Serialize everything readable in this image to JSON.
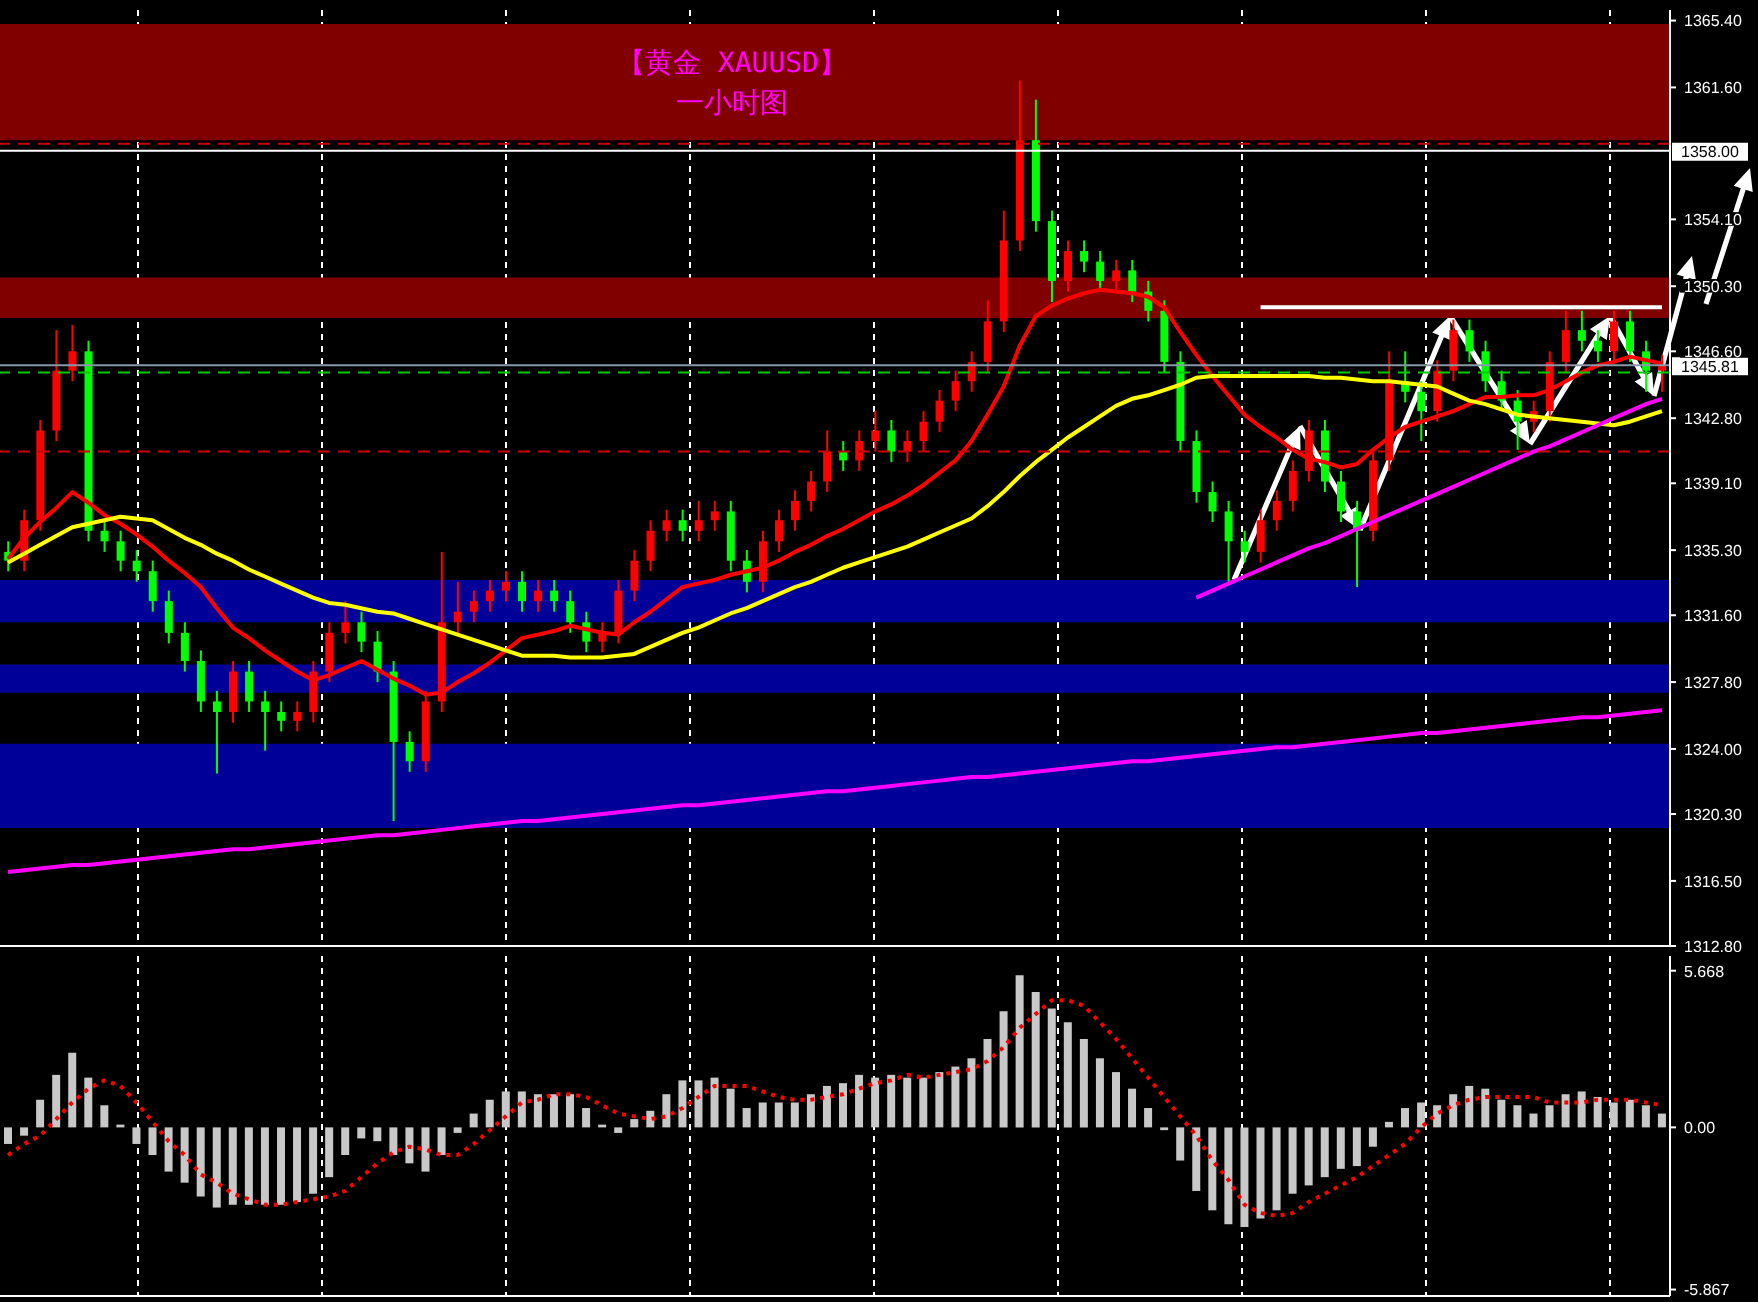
{
  "chart_data": [
    {
      "type": "candlestick",
      "title": "【黄金 XAUUSD】",
      "subtitle": "一小时图",
      "categories": [
        null,
        null,
        null,
        null,
        null,
        null,
        null,
        null,
        null,
        null,
        null,
        null,
        null,
        null,
        null,
        null,
        null,
        null,
        null,
        null,
        null,
        null,
        null,
        null,
        null,
        null,
        null,
        null,
        null,
        null,
        null,
        null,
        null,
        null,
        null,
        null,
        null,
        null,
        null,
        null,
        null,
        null,
        null,
        null,
        null,
        null,
        null,
        null,
        null,
        null,
        null,
        null,
        null,
        null,
        null,
        null,
        null,
        null,
        null,
        null,
        null,
        null,
        null,
        null,
        null,
        null,
        null,
        null,
        null,
        null,
        null,
        null,
        null,
        null,
        null,
        null,
        null,
        null,
        null,
        null,
        null,
        null,
        null,
        null,
        null,
        null,
        null,
        null,
        null,
        null,
        null,
        null,
        null,
        null,
        null,
        null,
        null,
        null,
        null,
        null,
        null,
        null,
        null,
        null
      ],
      "ohlc": [
        [
          1335.2,
          1335.8,
          1334.1,
          1334.7
        ],
        [
          1334.7,
          1337.6,
          1334.1,
          1337.0
        ],
        [
          1337.0,
          1342.7,
          1336.4,
          1342.1
        ],
        [
          1342.1,
          1347.8,
          1341.5,
          1345.5
        ],
        [
          1345.5,
          1348.1,
          1344.9,
          1346.6
        ],
        [
          1346.6,
          1347.2,
          1335.8,
          1336.4
        ],
        [
          1336.4,
          1337.0,
          1335.2,
          1335.8
        ],
        [
          1335.8,
          1336.4,
          1334.1,
          1334.7
        ],
        [
          1334.7,
          1335.3,
          1333.5,
          1334.1
        ],
        [
          1334.1,
          1334.7,
          1331.8,
          1332.4
        ],
        [
          1332.4,
          1333.0,
          1330.0,
          1330.6
        ],
        [
          1330.6,
          1331.2,
          1328.4,
          1329.0
        ],
        [
          1329.0,
          1329.6,
          1326.1,
          1326.7
        ],
        [
          1326.7,
          1327.3,
          1322.6,
          1326.1
        ],
        [
          1326.1,
          1329.0,
          1325.5,
          1328.4
        ],
        [
          1328.4,
          1329.0,
          1326.1,
          1326.7
        ],
        [
          1326.7,
          1327.3,
          1323.9,
          1326.1
        ],
        [
          1326.1,
          1326.7,
          1325.0,
          1325.6
        ],
        [
          1325.6,
          1326.7,
          1325.0,
          1326.1
        ],
        [
          1326.1,
          1329.0,
          1325.5,
          1328.4
        ],
        [
          1328.4,
          1331.2,
          1327.8,
          1330.6
        ],
        [
          1330.6,
          1332.4,
          1330.0,
          1331.2
        ],
        [
          1331.2,
          1331.8,
          1329.5,
          1330.1
        ],
        [
          1330.1,
          1330.7,
          1327.8,
          1328.4
        ],
        [
          1328.4,
          1329.0,
          1319.9,
          1324.4
        ],
        [
          1324.4,
          1325.0,
          1322.7,
          1323.3
        ],
        [
          1323.3,
          1327.3,
          1322.7,
          1326.7
        ],
        [
          1326.7,
          1335.2,
          1326.1,
          1331.2
        ],
        [
          1331.2,
          1333.5,
          1330.6,
          1331.8
        ],
        [
          1331.8,
          1333.0,
          1331.2,
          1332.4
        ],
        [
          1332.4,
          1333.6,
          1331.8,
          1333.0
        ],
        [
          1333.0,
          1334.1,
          1332.4,
          1333.5
        ],
        [
          1333.5,
          1334.1,
          1331.8,
          1332.4
        ],
        [
          1332.4,
          1333.6,
          1331.8,
          1333.0
        ],
        [
          1333.0,
          1333.6,
          1331.8,
          1332.4
        ],
        [
          1332.4,
          1333.0,
          1330.6,
          1331.2
        ],
        [
          1331.2,
          1331.8,
          1329.5,
          1330.1
        ],
        [
          1330.1,
          1331.2,
          1329.5,
          1330.6
        ],
        [
          1330.6,
          1333.6,
          1330.0,
          1333.0
        ],
        [
          1333.0,
          1335.3,
          1332.4,
          1334.7
        ],
        [
          1334.7,
          1337.0,
          1334.1,
          1336.4
        ],
        [
          1336.4,
          1337.6,
          1335.8,
          1337.0
        ],
        [
          1337.0,
          1337.6,
          1335.8,
          1336.4
        ],
        [
          1336.4,
          1338.1,
          1335.8,
          1337.0
        ],
        [
          1337.0,
          1338.1,
          1336.4,
          1337.5
        ],
        [
          1337.5,
          1338.1,
          1334.1,
          1334.7
        ],
        [
          1334.7,
          1335.3,
          1332.9,
          1333.5
        ],
        [
          1333.5,
          1336.4,
          1332.9,
          1335.8
        ],
        [
          1335.8,
          1337.6,
          1335.2,
          1337.0
        ],
        [
          1337.0,
          1338.7,
          1336.4,
          1338.1
        ],
        [
          1338.1,
          1339.8,
          1337.5,
          1339.2
        ],
        [
          1339.2,
          1342.1,
          1338.6,
          1340.9
        ],
        [
          1340.9,
          1341.5,
          1339.8,
          1340.4
        ],
        [
          1340.4,
          1342.1,
          1339.8,
          1341.5
        ],
        [
          1341.5,
          1343.2,
          1340.9,
          1342.1
        ],
        [
          1342.1,
          1342.7,
          1340.3,
          1340.9
        ],
        [
          1340.9,
          1342.1,
          1340.3,
          1341.5
        ],
        [
          1341.5,
          1343.2,
          1340.9,
          1342.6
        ],
        [
          1342.6,
          1344.4,
          1342.0,
          1343.8
        ],
        [
          1343.8,
          1345.5,
          1343.2,
          1344.9
        ],
        [
          1344.9,
          1346.6,
          1344.3,
          1346.0
        ],
        [
          1346.0,
          1349.5,
          1345.4,
          1348.3
        ],
        [
          1348.3,
          1354.6,
          1347.7,
          1352.9
        ],
        [
          1352.9,
          1362.0,
          1352.3,
          1358.6
        ],
        [
          1358.6,
          1360.9,
          1353.4,
          1354.0
        ],
        [
          1354.0,
          1354.6,
          1349.4,
          1350.6
        ],
        [
          1350.6,
          1352.9,
          1350.0,
          1352.3
        ],
        [
          1352.3,
          1352.9,
          1351.1,
          1351.7
        ],
        [
          1351.7,
          1352.3,
          1350.0,
          1350.6
        ],
        [
          1350.6,
          1351.8,
          1350.0,
          1351.2
        ],
        [
          1351.2,
          1351.8,
          1349.4,
          1350.0
        ],
        [
          1350.0,
          1350.6,
          1348.3,
          1348.9
        ],
        [
          1348.9,
          1349.5,
          1345.4,
          1346.0
        ],
        [
          1346.0,
          1346.6,
          1340.9,
          1341.5
        ],
        [
          1341.5,
          1342.1,
          1338.0,
          1338.6
        ],
        [
          1338.6,
          1339.2,
          1336.9,
          1337.5
        ],
        [
          1337.5,
          1338.1,
          1333.5,
          1335.8
        ],
        [
          1335.8,
          1336.4,
          1334.6,
          1335.2
        ],
        [
          1335.2,
          1337.6,
          1334.6,
          1337.0
        ],
        [
          1337.0,
          1338.7,
          1336.4,
          1338.1
        ],
        [
          1338.1,
          1340.4,
          1337.5,
          1339.8
        ],
        [
          1339.8,
          1342.7,
          1339.2,
          1342.1
        ],
        [
          1342.1,
          1342.7,
          1338.6,
          1339.2
        ],
        [
          1339.2,
          1339.8,
          1336.9,
          1337.5
        ],
        [
          1337.5,
          1338.1,
          1333.2,
          1336.4
        ],
        [
          1336.4,
          1341.0,
          1335.8,
          1340.4
        ],
        [
          1340.4,
          1346.6,
          1339.8,
          1344.9
        ],
        [
          1344.9,
          1346.6,
          1343.7,
          1344.3
        ],
        [
          1344.3,
          1344.9,
          1341.5,
          1343.2
        ],
        [
          1343.2,
          1346.1,
          1342.6,
          1345.5
        ],
        [
          1345.5,
          1348.4,
          1344.9,
          1347.8
        ],
        [
          1347.8,
          1348.4,
          1346.0,
          1346.6
        ],
        [
          1346.6,
          1347.2,
          1344.3,
          1344.9
        ],
        [
          1344.9,
          1345.5,
          1343.2,
          1343.8
        ],
        [
          1343.8,
          1344.4,
          1341.0,
          1342.6
        ],
        [
          1342.6,
          1343.8,
          1342.0,
          1343.2
        ],
        [
          1343.2,
          1346.6,
          1342.6,
          1346.0
        ],
        [
          1346.0,
          1348.9,
          1345.4,
          1347.8
        ],
        [
          1347.8,
          1348.9,
          1346.6,
          1347.2
        ],
        [
          1347.2,
          1347.8,
          1346.0,
          1346.6
        ],
        [
          1346.6,
          1348.9,
          1346.0,
          1348.3
        ],
        [
          1348.3,
          1348.9,
          1346.0,
          1346.6
        ],
        [
          1346.6,
          1347.2,
          1344.3,
          1345.5
        ],
        [
          1345.5,
          1346.4,
          1344.3,
          1345.81
        ]
      ],
      "colors": [
        "#00ff00",
        "#ff0000",
        "#ff0000",
        "#ff0000",
        "#ff0000",
        "#00ff00",
        "#00ff00",
        "#00ff00",
        "#00ff00",
        "#00ff00",
        "#00ff00",
        "#00ff00",
        "#00ff00",
        "#00ff00",
        "#ff0000",
        "#00ff00",
        "#00ff00",
        "#00ff00",
        "#ff0000",
        "#ff0000",
        "#ff0000",
        "#ff0000",
        "#00ff00",
        "#00ff00",
        "#00ff00",
        "#00ff00",
        "#ff0000",
        "#ff0000",
        "#ff0000",
        "#ff0000",
        "#ff0000",
        "#ff0000",
        "#00ff00",
        "#ff0000",
        "#00ff00",
        "#00ff00",
        "#00ff00",
        "#ff0000",
        "#ff0000",
        "#ff0000",
        "#ff0000",
        "#ff0000",
        "#00ff00",
        "#ff0000",
        "#ff0000",
        "#00ff00",
        "#00ff00",
        "#ff0000",
        "#ff0000",
        "#ff0000",
        "#ff0000",
        "#ff0000",
        "#00ff00",
        "#ff0000",
        "#ff0000",
        "#00ff00",
        "#ff0000",
        "#ff0000",
        "#ff0000",
        "#ff0000",
        "#ff0000",
        "#ff0000",
        "#ff0000",
        "#ff0000",
        "#00ff00",
        "#00ff00",
        "#ff0000",
        "#00ff00",
        "#00ff00",
        "#ff0000",
        "#00ff00",
        "#00ff00",
        "#00ff00",
        "#00ff00",
        "#00ff00",
        "#00ff00",
        "#00ff00",
        "#00ff00",
        "#ff0000",
        "#ff0000",
        "#ff0000",
        "#ff0000",
        "#00ff00",
        "#00ff00",
        "#00ff00",
        "#ff0000",
        "#ff0000",
        "#00ff00",
        "#00ff00",
        "#ff0000",
        "#ff0000",
        "#00ff00",
        "#00ff00",
        "#00ff00",
        "#00ff00",
        "#ff0000",
        "#ff0000",
        "#ff0000",
        "#00ff00",
        "#00ff00",
        "#ff0000",
        "#00ff00",
        "#00ff00",
        "#ff0000"
      ],
      "series": [
        {
          "type": "line",
          "color": "#ff0000",
          "values": [
            1334.8,
            1336.0,
            1336.9,
            1337.7,
            1338.6,
            1338.0,
            1337.3,
            1336.8,
            1336.2,
            1335.5,
            1334.7,
            1334.0,
            1333.2,
            1332.0,
            1330.9,
            1330.3,
            1329.6,
            1329.0,
            1328.4,
            1327.9,
            1328.2,
            1328.6,
            1329.0,
            1328.5,
            1328.0,
            1327.6,
            1327.1,
            1327.2,
            1327.8,
            1328.3,
            1328.9,
            1329.6,
            1330.3,
            1330.5,
            1330.7,
            1331.0,
            1330.8,
            1330.6,
            1330.5,
            1331.2,
            1331.8,
            1332.5,
            1333.2,
            1333.4,
            1333.6,
            1333.9,
            1334.1,
            1334.3,
            1334.7,
            1335.2,
            1335.6,
            1336.1,
            1336.5,
            1337.0,
            1337.5,
            1337.9,
            1338.4,
            1339.0,
            1339.7,
            1340.4,
            1341.5,
            1343.0,
            1344.6,
            1346.9,
            1348.6,
            1349.2,
            1349.6,
            1349.9,
            1350.1,
            1350.0,
            1349.9,
            1349.7,
            1349.1,
            1347.7,
            1346.4,
            1345.2,
            1344.1,
            1343.0,
            1342.3,
            1341.7,
            1341.0,
            1340.5,
            1340.3,
            1340.0,
            1340.2,
            1341.0,
            1341.7,
            1342.3,
            1342.6,
            1342.9,
            1343.2,
            1343.6,
            1344.0,
            1344.0,
            1344.1,
            1344.1,
            1344.4,
            1344.9,
            1345.4,
            1345.8,
            1346.0,
            1346.3,
            1346.1,
            1345.9
          ]
        },
        {
          "type": "line",
          "color": "#ffff00",
          "values": [
            1334.6,
            1335.1,
            1335.6,
            1336.1,
            1336.6,
            1336.8,
            1337.0,
            1337.2,
            1337.1,
            1337.0,
            1336.5,
            1336.0,
            1335.6,
            1335.1,
            1334.7,
            1334.2,
            1333.8,
            1333.4,
            1333.0,
            1332.6,
            1332.3,
            1332.2,
            1332.0,
            1331.8,
            1331.7,
            1331.4,
            1331.1,
            1330.8,
            1330.5,
            1330.2,
            1329.9,
            1329.6,
            1329.3,
            1329.3,
            1329.3,
            1329.2,
            1329.2,
            1329.2,
            1329.3,
            1329.4,
            1329.8,
            1330.2,
            1330.6,
            1330.9,
            1331.3,
            1331.7,
            1332.0,
            1332.4,
            1332.8,
            1333.2,
            1333.5,
            1333.9,
            1334.3,
            1334.6,
            1334.9,
            1335.2,
            1335.5,
            1335.9,
            1336.3,
            1336.7,
            1337.1,
            1337.8,
            1338.6,
            1339.5,
            1340.3,
            1341.0,
            1341.7,
            1342.3,
            1342.9,
            1343.5,
            1343.9,
            1344.1,
            1344.4,
            1344.7,
            1345.1,
            1345.2,
            1345.2,
            1345.2,
            1345.2,
            1345.2,
            1345.2,
            1345.2,
            1345.1,
            1345.1,
            1345.0,
            1344.9,
            1344.9,
            1344.8,
            1344.7,
            1344.6,
            1344.2,
            1343.8,
            1343.6,
            1343.3,
            1343.0,
            1342.9,
            1342.8,
            1342.7,
            1342.6,
            1342.5,
            1342.4,
            1342.6,
            1342.9,
            1343.2
          ]
        },
        {
          "type": "line",
          "color": "#ff00ff",
          "values": [
            1317.0,
            1317.1,
            1317.2,
            1317.3,
            1317.4,
            1317.4,
            1317.5,
            1317.6,
            1317.7,
            1317.8,
            1317.9,
            1318.0,
            1318.1,
            1318.2,
            1318.3,
            1318.3,
            1318.4,
            1318.5,
            1318.6,
            1318.7,
            1318.8,
            1318.9,
            1319.0,
            1319.1,
            1319.1,
            1319.2,
            1319.3,
            1319.4,
            1319.5,
            1319.6,
            1319.7,
            1319.8,
            1319.9,
            1319.9,
            1320.0,
            1320.1,
            1320.2,
            1320.3,
            1320.4,
            1320.5,
            1320.6,
            1320.7,
            1320.8,
            1320.8,
            1320.9,
            1321.0,
            1321.1,
            1321.2,
            1321.3,
            1321.4,
            1321.5,
            1321.6,
            1321.6,
            1321.7,
            1321.8,
            1321.9,
            1322.0,
            1322.1,
            1322.2,
            1322.3,
            1322.4,
            1322.4,
            1322.5,
            1322.6,
            1322.7,
            1322.8,
            1322.9,
            1323.0,
            1323.1,
            1323.2,
            1323.3,
            1323.3,
            1323.4,
            1323.5,
            1323.6,
            1323.7,
            1323.8,
            1323.9,
            1324.0,
            1324.1,
            1324.1,
            1324.2,
            1324.3,
            1324.4,
            1324.5,
            1324.6,
            1324.7,
            1324.8,
            1324.9,
            1324.9,
            1325.0,
            1325.1,
            1325.2,
            1325.3,
            1325.4,
            1325.5,
            1325.6,
            1325.7,
            1325.8,
            1325.8,
            1325.9,
            1326.0,
            1326.1,
            1326.2
          ]
        },
        {
          "type": "line",
          "color": "#ff00ff",
          "values": [
            null,
            null,
            null,
            null,
            null,
            null,
            null,
            null,
            null,
            null,
            null,
            null,
            null,
            null,
            null,
            null,
            null,
            null,
            null,
            null,
            null,
            null,
            null,
            null,
            null,
            null,
            null,
            null,
            null,
            null,
            null,
            null,
            null,
            null,
            null,
            null,
            null,
            null,
            null,
            null,
            null,
            null,
            null,
            null,
            null,
            null,
            null,
            null,
            null,
            null,
            null,
            null,
            null,
            null,
            null,
            null,
            null,
            null,
            null,
            null,
            null,
            null,
            null,
            null,
            null,
            null,
            null,
            null,
            null,
            null,
            null,
            null,
            null,
            null,
            1332.6,
            1333.0,
            1333.4,
            1333.8,
            1334.2,
            1334.6,
            1335.0,
            1335.4,
            1335.7,
            1336.1,
            1336.5,
            1336.9,
            1337.3,
            1337.7,
            1338.1,
            1338.5,
            1338.9,
            1339.3,
            1339.7,
            1340.1,
            1340.5,
            1340.9,
            1341.2,
            1341.6,
            1342.0,
            1342.4,
            1342.8,
            1343.2,
            1343.6,
            1343.9
          ]
        },
        {
          "type": "line",
          "color": "#ffffff",
          "values": [
            null,
            null,
            null,
            null,
            null,
            null,
            null,
            null,
            null,
            null,
            null,
            null,
            null,
            null,
            null,
            null,
            null,
            null,
            null,
            null,
            null,
            null,
            null,
            null,
            null,
            null,
            null,
            null,
            null,
            null,
            null,
            null,
            null,
            null,
            null,
            null,
            null,
            null,
            null,
            null,
            null,
            null,
            null,
            null,
            null,
            null,
            null,
            null,
            null,
            null,
            null,
            null,
            null,
            null,
            null,
            null,
            null,
            null,
            null,
            null,
            null,
            null,
            null,
            null,
            null,
            null,
            null,
            null,
            null,
            null,
            null,
            null,
            null,
            null,
            null,
            null,
            null,
            null,
            1349.1,
            1349.1,
            1349.1,
            1349.1,
            1349.1,
            1349.1,
            1349.1,
            1349.1,
            1349.1,
            1349.1,
            1349.1,
            1349.1,
            1349.1,
            1349.1,
            1349.1,
            1349.1,
            1349.1,
            1349.1,
            1349.1,
            1349.1,
            1349.1,
            1349.1,
            1349.1,
            1349.1,
            1349.1,
            1349.1
          ]
        }
      ],
      "ylim": [
        1312.8,
        1366.0
      ],
      "yticks": [
        {
          "value": 1365.4,
          "label": "1365.40"
        },
        {
          "value": 1361.6,
          "label": "1361.60"
        },
        {
          "value": 1354.1,
          "label": "1354.10"
        },
        {
          "value": 1350.3,
          "label": "1350.30"
        },
        {
          "value": 1346.6,
          "label": "1346.60"
        },
        {
          "value": 1342.8,
          "label": "1342.80"
        },
        {
          "value": 1339.1,
          "label": "1339.10"
        },
        {
          "value": 1335.3,
          "label": "1335.30"
        },
        {
          "value": 1331.6,
          "label": "1331.60"
        },
        {
          "value": 1327.8,
          "label": "1327.80"
        },
        {
          "value": 1324.0,
          "label": "1324.00"
        },
        {
          "value": 1320.3,
          "label": "1320.30"
        },
        {
          "value": 1316.5,
          "label": "1316.50"
        },
        {
          "value": 1312.8,
          "label": "1312.80"
        }
      ],
      "bands": [
        {
          "axis": "y",
          "from": 1358.6,
          "to": 1365.2,
          "color": "#800000"
        },
        {
          "axis": "y",
          "from": 1348.5,
          "to": 1350.8,
          "color": "#800000"
        },
        {
          "axis": "y",
          "from": 1331.2,
          "to": 1333.6,
          "color": "#000099"
        },
        {
          "axis": "y",
          "from": 1327.2,
          "to": 1328.8,
          "color": "#000099"
        },
        {
          "axis": "y",
          "from": 1319.5,
          "to": 1324.3,
          "color": "#000099"
        }
      ],
      "ref_lines": [
        {
          "axis": "y",
          "value": 1358.0,
          "label": "1358.00",
          "color": "#ffffff"
        },
        {
          "axis": "y",
          "value": 1345.81,
          "label": "1345.81",
          "color": "#8899aa"
        },
        {
          "axis": "y",
          "value": 1345.4,
          "color": "#00cc00",
          "line_style": "dashed"
        },
        {
          "axis": "y",
          "value": 1340.9,
          "color": "#cc0000",
          "line_style": "dashed"
        },
        {
          "axis": "y",
          "value": 1358.4,
          "color": "#cc0000",
          "line_style": "dashed"
        }
      ],
      "grid": "x",
      "tick_labels": "y"
    },
    {
      "type": "bar",
      "categories": [
        null,
        null,
        null,
        null,
        null,
        null,
        null,
        null,
        null,
        null,
        null,
        null,
        null,
        null,
        null,
        null,
        null,
        null,
        null,
        null,
        null,
        null,
        null,
        null,
        null,
        null,
        null,
        null,
        null,
        null,
        null,
        null,
        null,
        null,
        null,
        null,
        null,
        null,
        null,
        null,
        null,
        null,
        null,
        null,
        null,
        null,
        null,
        null,
        null,
        null,
        null,
        null,
        null,
        null,
        null,
        null,
        null,
        null,
        null,
        null,
        null,
        null,
        null,
        null,
        null,
        null,
        null,
        null,
        null,
        null,
        null,
        null,
        null,
        null,
        null,
        null,
        null,
        null,
        null,
        null,
        null,
        null,
        null,
        null,
        null,
        null,
        null,
        null,
        null,
        null,
        null,
        null,
        null,
        null,
        null,
        null,
        null,
        null,
        null,
        null,
        null,
        null,
        null,
        null
      ],
      "series": [
        {
          "type": "bar",
          "color": "#c8c8c8",
          "values": [
            -0.6,
            -0.3,
            1.0,
            1.9,
            2.7,
            1.8,
            0.8,
            0.1,
            -0.6,
            -1.0,
            -1.6,
            -2.0,
            -2.5,
            -2.9,
            -2.8,
            -2.8,
            -2.8,
            -2.8,
            -2.7,
            -2.4,
            -1.8,
            -1.0,
            -0.4,
            -0.5,
            -1.0,
            -1.3,
            -1.6,
            -1.0,
            -0.2,
            0.5,
            1.0,
            1.3,
            1.3,
            1.2,
            1.2,
            1.2,
            0.7,
            0.1,
            -0.2,
            0.3,
            0.6,
            1.2,
            1.7,
            1.7,
            1.8,
            1.4,
            0.7,
            0.9,
            0.9,
            0.9,
            1.2,
            1.5,
            1.6,
            1.9,
            1.8,
            1.9,
            1.8,
            1.8,
            2.0,
            2.2,
            2.5,
            3.2,
            4.2,
            5.5,
            4.9,
            4.3,
            3.8,
            3.2,
            2.5,
            2.0,
            1.4,
            0.7,
            -0.1,
            -1.2,
            -2.3,
            -3.0,
            -3.5,
            -3.6,
            -3.3,
            -3.0,
            -2.4,
            -2.1,
            -1.8,
            -1.5,
            -1.4,
            -0.7,
            0.2,
            0.7,
            0.9,
            0.8,
            1.2,
            1.5,
            1.4,
            1.0,
            0.8,
            0.5,
            0.8,
            1.2,
            1.3,
            1.1,
            0.9,
            1.0,
            0.8,
            0.5
          ]
        },
        {
          "type": "line",
          "color": "#ff0000",
          "line_style": "dotted",
          "values": [
            -1.0,
            -0.6,
            -0.3,
            0.3,
            0.9,
            1.4,
            1.7,
            1.5,
            0.9,
            0.2,
            -0.5,
            -1.0,
            -1.7,
            -2.0,
            -2.4,
            -2.6,
            -2.8,
            -2.8,
            -2.7,
            -2.6,
            -2.5,
            -2.3,
            -1.8,
            -1.3,
            -0.9,
            -0.7,
            -0.8,
            -1.0,
            -1.0,
            -0.6,
            -0.1,
            0.4,
            0.9,
            1.0,
            1.2,
            1.2,
            1.1,
            0.8,
            0.5,
            0.4,
            0.3,
            0.4,
            0.7,
            1.1,
            1.5,
            1.5,
            1.5,
            1.3,
            1.1,
            1.0,
            1.0,
            1.1,
            1.2,
            1.4,
            1.6,
            1.7,
            1.9,
            1.8,
            1.9,
            2.0,
            2.1,
            2.4,
            2.9,
            3.6,
            4.1,
            4.6,
            4.6,
            4.4,
            3.8,
            3.2,
            2.5,
            1.8,
            1.1,
            0.4,
            -0.3,
            -1.2,
            -1.9,
            -2.8,
            -3.1,
            -3.2,
            -3.1,
            -2.7,
            -2.4,
            -2.1,
            -1.8,
            -1.4,
            -1.0,
            -0.6,
            0.0,
            0.5,
            0.8,
            1.0,
            1.1,
            1.1,
            1.1,
            1.1,
            0.9,
            0.9,
            0.9,
            1.0,
            1.0,
            1.0,
            0.9,
            0.8
          ]
        }
      ],
      "ylim": [
        -6.1,
        6.2
      ],
      "yticks": [
        {
          "value": 5.668,
          "label": "5.668"
        },
        {
          "value": 0,
          "label": "0.00"
        },
        {
          "value": -5.867,
          "label": "-5.867"
        }
      ],
      "grid": "x",
      "tick_labels": "y"
    }
  ]
}
